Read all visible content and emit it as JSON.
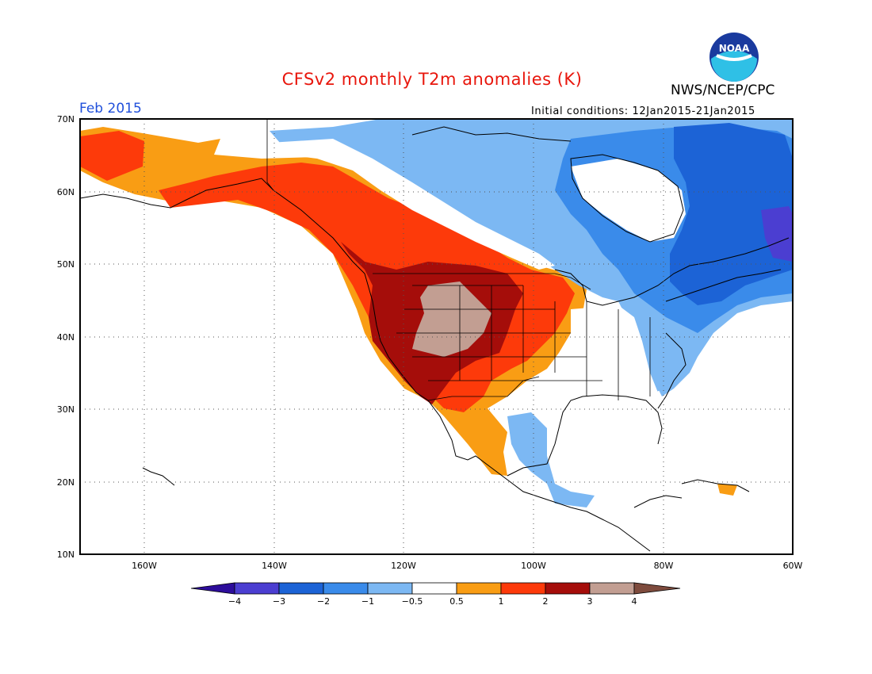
{
  "header": {
    "title": "CFSv2 monthly T2m anomalies (K)",
    "title_color": "#e8160c",
    "agency": "NWS/NCEP/CPC",
    "period": "Feb 2015",
    "period_color": "#1f4fdb",
    "initial_conditions": "Initial conditions: 12Jan2015-21Jan2015",
    "logo_text": "NOAA"
  },
  "map": {
    "lat_labels": [
      "70N",
      "60N",
      "50N",
      "40N",
      "30N",
      "20N",
      "10N"
    ],
    "lon_labels": [
      "160W",
      "140W",
      "120W",
      "100W",
      "80W",
      "60W"
    ],
    "grid": "dotted"
  },
  "colorbar": {
    "ticks": [
      "-4",
      "-3",
      "-2",
      "-1",
      "-0.5",
      "0.5",
      "1",
      "2",
      "3",
      "4"
    ],
    "colors": [
      "#2d0d9b",
      "#4b3ed1",
      "#1c63d6",
      "#3a8bea",
      "#7cb8f3",
      "#ffffff",
      "#f99d14",
      "#fd3a0a",
      "#a50d0a",
      "#c29e92",
      "#7e4b3d"
    ]
  }
}
